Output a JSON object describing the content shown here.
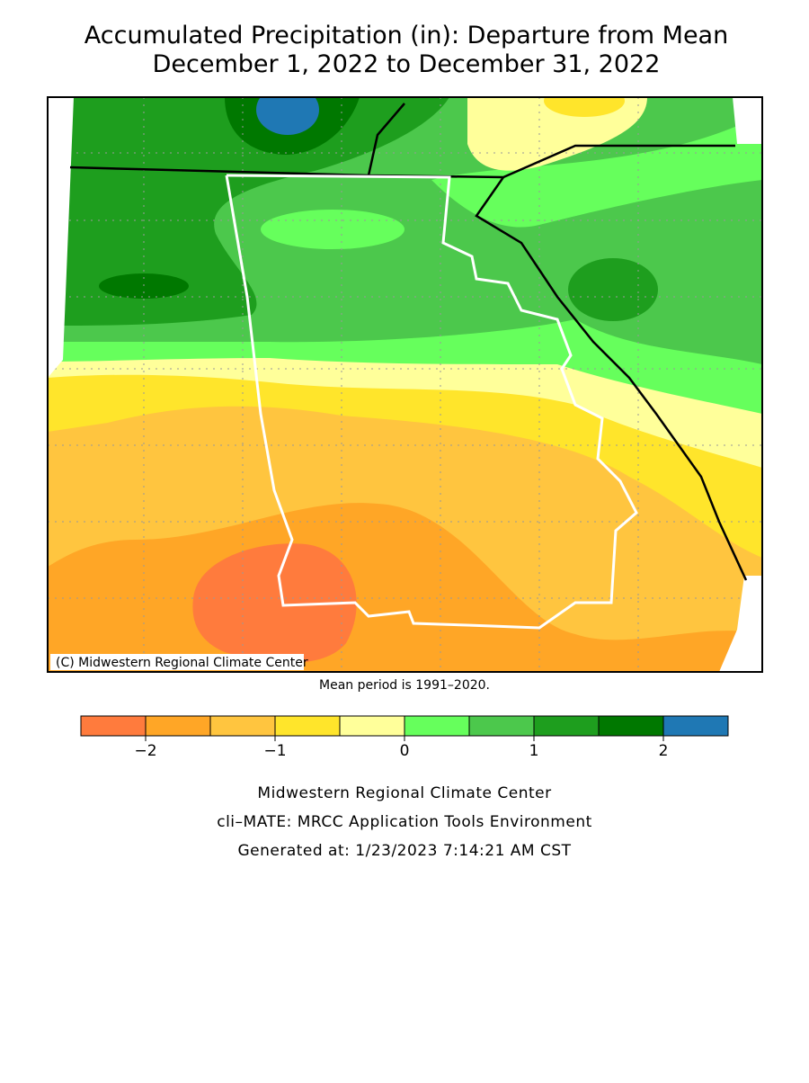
{
  "title": [
    "Accumulated Precipitation (in): Departure from Mean",
    "December 1, 2022 to December 31, 2022"
  ],
  "map": {
    "credit": "(C) Midwestern Regional Climate Center",
    "note": "Mean period is 1991–2020."
  },
  "legend": {
    "bins": [
      -2.5,
      -2,
      -1.5,
      -1,
      -0.5,
      0,
      0.5,
      1,
      1.5,
      2,
      2.5
    ],
    "colors": [
      "#ff7b3d",
      "#ffa626",
      "#ffc53f",
      "#ffe52b",
      "#ffff9a",
      "#66ff5c",
      "#4cc84c",
      "#1e9e1e",
      "#007800",
      "#1f78b4"
    ],
    "ticks": [
      {
        "value": -2,
        "label": "−2"
      },
      {
        "value": -1,
        "label": "−1"
      },
      0,
      1,
      2
    ]
  },
  "footer": [
    "Midwestern Regional Climate Center",
    "cli–MATE: MRCC Application Tools Environment",
    "Generated at: 1/23/2023 7:14:21 AM CST"
  ]
}
